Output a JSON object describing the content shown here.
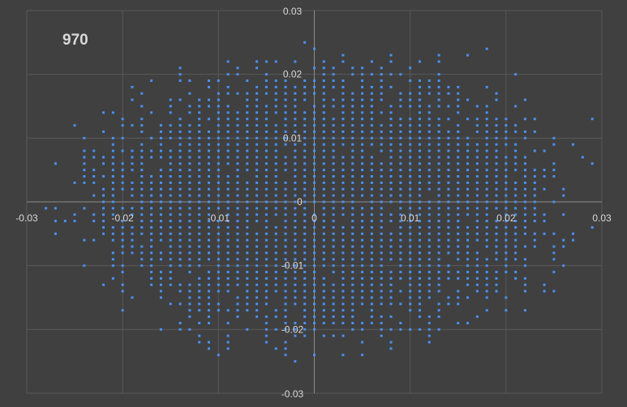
{
  "chart_data": {
    "type": "scatter",
    "title": "970",
    "xlabel": "",
    "ylabel": "",
    "xlim": [
      -0.03,
      0.03
    ],
    "ylim": [
      -0.03,
      0.03
    ],
    "x_ticks": [
      "-0.03",
      "-0.02",
      "-0.01",
      "0",
      "0.01",
      "0.02",
      "0.03"
    ],
    "y_ticks": [
      "-0.03",
      "-0.02",
      "-0.01",
      "0",
      "0.01",
      "0.02",
      "0.03"
    ],
    "grid": true,
    "legend": "none",
    "grid_step": 0.001,
    "point_shape": "square",
    "colors": {
      "background": "#404040",
      "gridline": "#595959",
      "axis": "#8c8c8c",
      "tick_label": "#d9d9d9",
      "title": "#d9d9d9",
      "marker": "#4a90f0"
    },
    "points": {
      "description_of_distribution": "Dense elliptical cloud of points on a 0.001 grid, centered near (0,0); x spans roughly -0.027 to 0.029, y spans roughly -0.025 to 0.024",
      "core_extent": {
        "x": [
          -0.018,
          0.021
        ],
        "y": [
          -0.019,
          0.019
        ]
      },
      "sample": [
        [
          -0.027,
          -0.005
        ],
        [
          -0.026,
          -0.003
        ],
        [
          -0.025,
          -0.002
        ],
        [
          -0.024,
          -0.006
        ],
        [
          -0.024,
          0.008
        ],
        [
          -0.023,
          0.001
        ],
        [
          -0.022,
          0.011
        ],
        [
          -0.022,
          -0.013
        ],
        [
          -0.021,
          0.014
        ],
        [
          -0.02,
          -0.017
        ],
        [
          -0.019,
          0.018
        ],
        [
          -0.017,
          0.019
        ],
        [
          -0.016,
          -0.02
        ],
        [
          -0.014,
          0.021
        ],
        [
          -0.012,
          -0.021
        ],
        [
          -0.01,
          -0.024
        ],
        [
          -0.009,
          -0.022
        ],
        [
          -0.008,
          0.02
        ],
        [
          -0.006,
          0.021
        ],
        [
          -0.004,
          0.022
        ],
        [
          -0.003,
          -0.024
        ],
        [
          -0.002,
          -0.025
        ],
        [
          0.0,
          -0.024
        ],
        [
          0.001,
          0.022
        ],
        [
          0.005,
          -0.024
        ],
        [
          0.01,
          0.021
        ],
        [
          0.013,
          -0.02
        ],
        [
          0.016,
          0.023
        ],
        [
          0.018,
          0.024
        ],
        [
          0.02,
          -0.017
        ],
        [
          0.021,
          0.02
        ],
        [
          0.022,
          0.016
        ],
        [
          0.023,
          0.013
        ],
        [
          0.024,
          -0.005
        ],
        [
          0.025,
          0.01
        ],
        [
          0.026,
          0.001
        ],
        [
          0.027,
          0.009
        ],
        [
          0.028,
          0.007
        ],
        [
          0.029,
          0.013
        ],
        [
          0.029,
          0.006
        ]
      ]
    }
  }
}
